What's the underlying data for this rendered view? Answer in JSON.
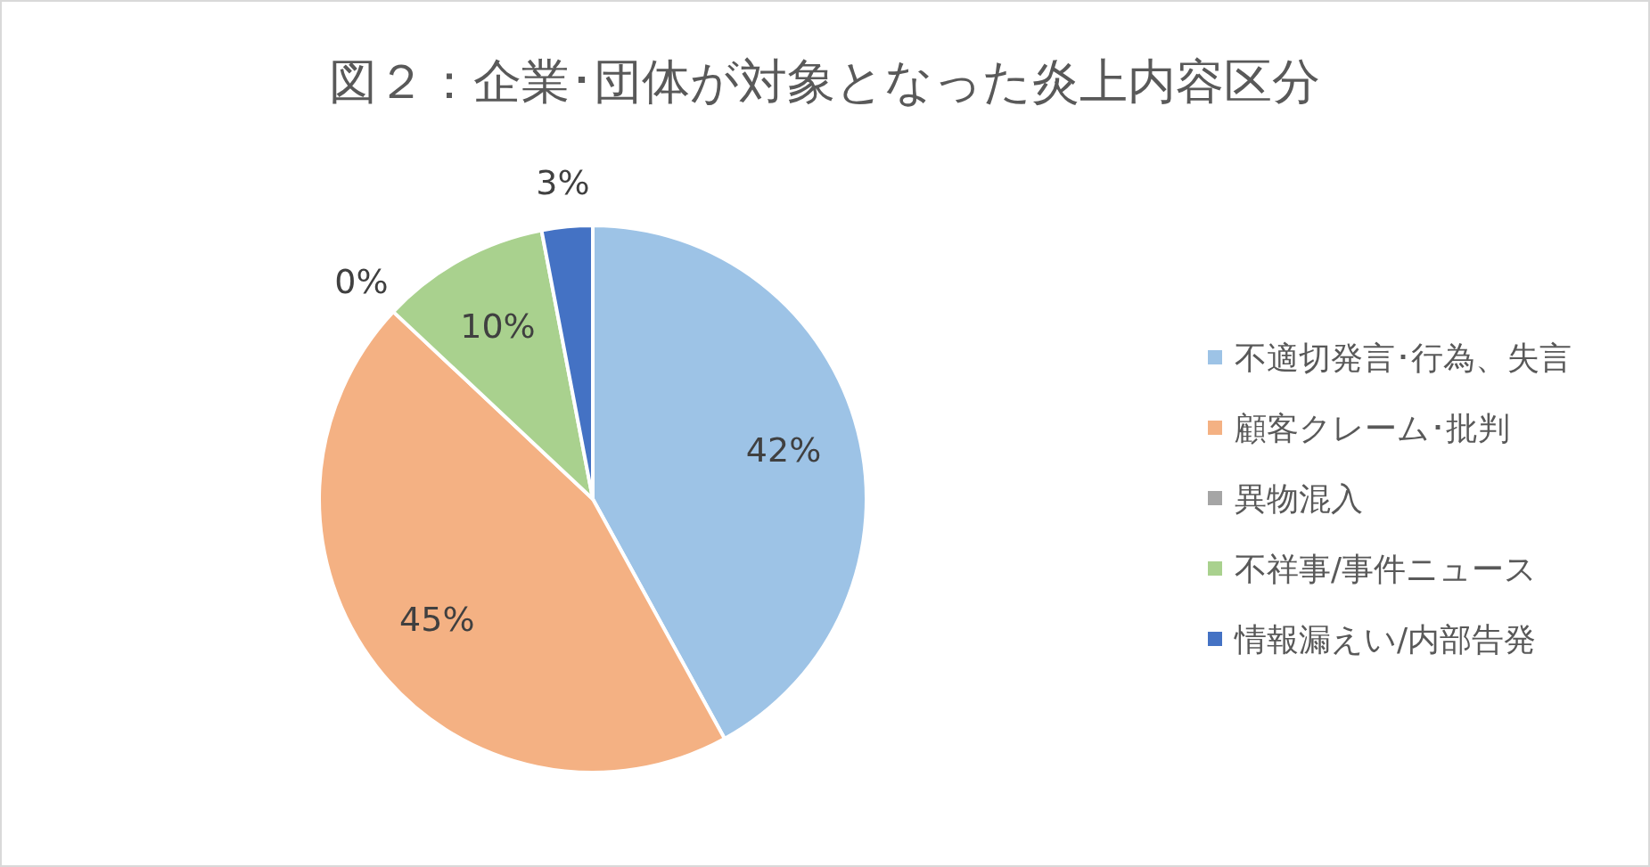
{
  "chart_data": {
    "type": "pie",
    "title": "図２：企業･団体が対象となった炎上内容区分",
    "categories": [
      "不適切発言･行為、失言",
      "顧客クレーム･批判",
      "異物混入",
      "不祥事/事件ニュース",
      "情報漏えい/内部告発"
    ],
    "values": [
      42,
      45,
      0,
      10,
      3
    ],
    "colors": [
      "#9dc3e6",
      "#f4b183",
      "#a5a5a5",
      "#a9d18e",
      "#4472c4"
    ],
    "value_labels": [
      "42%",
      "45%",
      "0%",
      "10%",
      "3%"
    ],
    "legend": "right"
  }
}
